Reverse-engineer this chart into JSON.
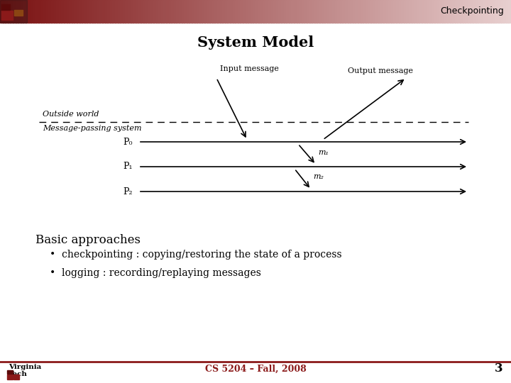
{
  "title": "System Model",
  "header_text": "Checkpointing",
  "bg_color": "#ffffff",
  "footer_text": "CS 5204 – Fall, 2008",
  "page_number": "3",
  "outside_world_label": "Outside world",
  "message_passing_label": "Message-passing system",
  "input_message_label": "Input message",
  "output_message_label": "Output message",
  "process_labels": [
    "P₀",
    "P₁",
    "P₂"
  ],
  "message_labels": [
    "m₁",
    "m₂"
  ],
  "basic_approaches_title": "Basic approaches",
  "bullet_points": [
    "checkpointing : copying/restoring the state of a process",
    "logging : recording/replaying messages"
  ],
  "header_dark_color": "#7a1010",
  "header_light_color": "#e8d0d0",
  "footer_line_color": "#8B1A1A",
  "footer_text_color": "#8B1A1A"
}
